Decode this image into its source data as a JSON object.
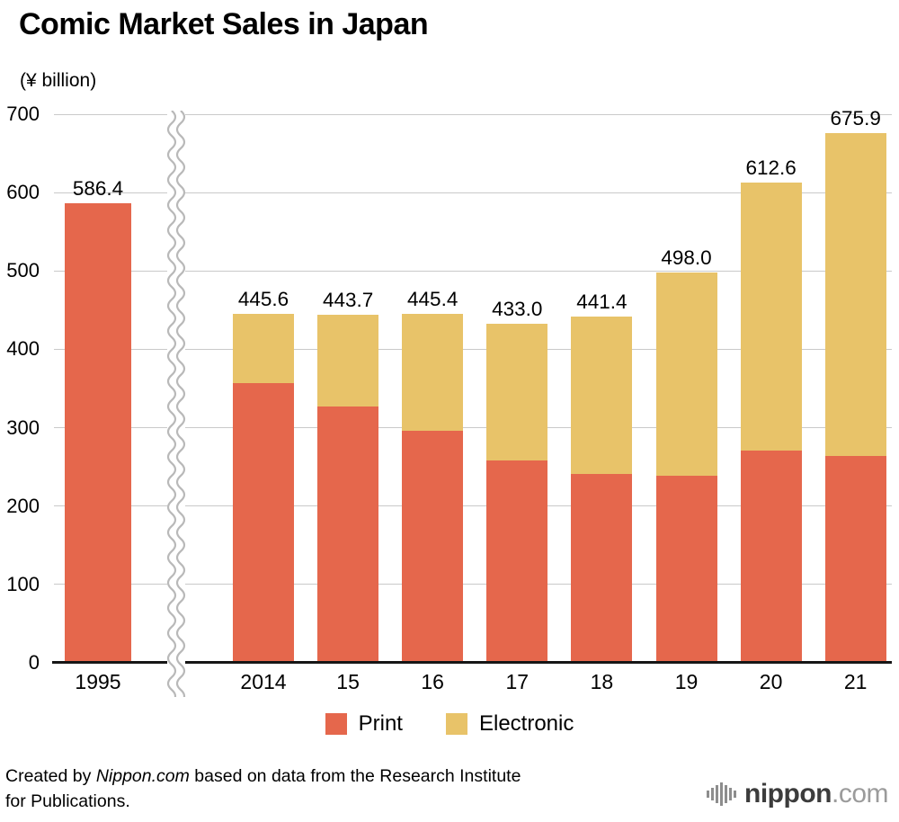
{
  "header": {
    "title": "Comic Market Sales in Japan",
    "unit_label": "(¥ billion)"
  },
  "chart_data": {
    "type": "bar",
    "variant": "stacked",
    "title": "Comic Market Sales in Japan",
    "ylabel": "(¥ billion)",
    "ylim": [
      0,
      700
    ],
    "ytick_step": 100,
    "grid": true,
    "legend_position": "bottom",
    "axis_break_after_category": "1995",
    "categories": [
      "1995",
      "2014",
      "15",
      "16",
      "17",
      "18",
      "19",
      "20",
      "21"
    ],
    "totals": [
      586.4,
      445.6,
      443.7,
      445.4,
      433.0,
      441.4,
      498.0,
      612.6,
      675.9
    ],
    "total_labels": [
      "586.4",
      "445.6",
      "443.7",
      "445.4",
      "433.0",
      "441.4",
      "498.0",
      "612.6",
      "675.9"
    ],
    "series": [
      {
        "name": "Print",
        "color": "#e5674c",
        "values": [
          586.4,
          356.9,
          326.8,
          296.3,
          258.3,
          241.2,
          238.7,
          270.6,
          264.5
        ]
      },
      {
        "name": "Electronic",
        "color": "#e8c369",
        "values": [
          0,
          88.7,
          116.9,
          149.1,
          174.7,
          200.2,
          259.3,
          342.0,
          411.4
        ]
      }
    ]
  },
  "footer": {
    "credit_prefix": "Created by ",
    "credit_source": "Nippon.com",
    "credit_suffix": " based on data from the Research Institute",
    "credit_line2": "for Publications.",
    "logo_name": "nippon",
    "logo_tld": ".com"
  }
}
